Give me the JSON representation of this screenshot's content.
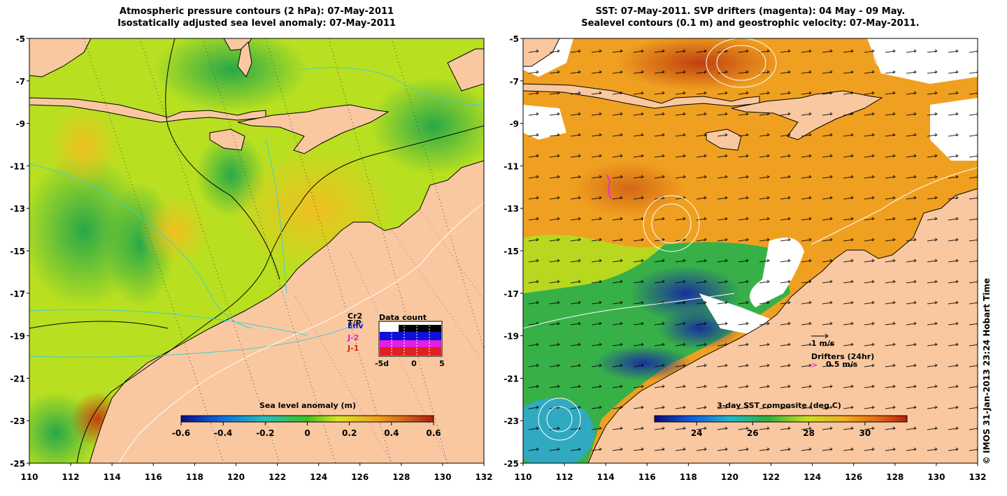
{
  "left_panel": {
    "title_line1": "Atmospheric pressure contours (2 hPa): 07-May-2011",
    "title_line2": "Isostatically adjusted sea level anomaly: 07-May-2011",
    "y_ticks": [
      "-5",
      "-7",
      "-9",
      "-11",
      "-13",
      "-15",
      "-17",
      "-19",
      "-21",
      "-23",
      "-25"
    ],
    "x_ticks": [
      "110",
      "112",
      "114",
      "116",
      "118",
      "120",
      "122",
      "124",
      "126",
      "128",
      "130",
      "132"
    ],
    "colorbar": {
      "label": "Sea level anomaly (m)",
      "ticks": [
        "-0.6",
        "-0.4",
        "-0.2",
        "0",
        "0.2",
        "0.4",
        "0.6"
      ],
      "range": [
        -0.6,
        0.6
      ]
    },
    "data_count": {
      "title": "Data count",
      "legend": [
        {
          "label": "Cr2",
          "color": "#000000"
        },
        {
          "label": "T/P",
          "color": "#000000"
        },
        {
          "label": "Env",
          "color": "#1010d8"
        },
        {
          "label": "J-2",
          "color": "#e020e0"
        },
        {
          "label": "J-1",
          "color": "#e02020"
        }
      ],
      "x_ticks": [
        "-5d",
        "0",
        "5"
      ]
    }
  },
  "right_panel": {
    "title_line1": "SST: 07-May-2011. SVP drifters (magenta): 04 May - 09 May.",
    "title_line2": "Sealevel contours (0.1 m) and geostrophic velocity: 07-May-2011.",
    "y_ticks": [
      "-5",
      "-7",
      "-9",
      "-11",
      "-13",
      "-15",
      "-17",
      "-19",
      "-21",
      "-23",
      "-25"
    ],
    "x_ticks": [
      "110",
      "112",
      "114",
      "116",
      "118",
      "120",
      "122",
      "124",
      "126",
      "128",
      "130",
      "132"
    ],
    "velocity_scale_label": "1 m/s",
    "drifters_label": "Drifters (24hr)",
    "drifter_scale_label": "0.5 m/s",
    "colorbar": {
      "label": "3-day SST composite (deg C)",
      "ticks": [
        "24",
        "26",
        "28",
        "30"
      ],
      "range": [
        22.5,
        31.5
      ]
    }
  },
  "credit": "© IMOS 31-Jan-2013 23:24 Hobart Time",
  "colors": {
    "land": "#f9c8a0",
    "coast_line": "#000000",
    "ocean_green": "#8fd62a",
    "ocean_yellow": "#e4ec20",
    "sst_orange": "#f0a020",
    "sst_red": "#c85010",
    "sst_blue": "#1a3aa8",
    "drifter": "#e030e0",
    "cloud": "#ffffff"
  }
}
